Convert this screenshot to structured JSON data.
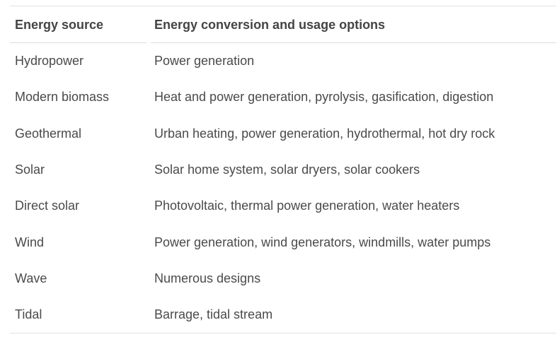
{
  "table": {
    "headers": [
      "Energy source",
      "Energy conversion and usage options"
    ],
    "rows": [
      [
        "Hydropower",
        "Power generation"
      ],
      [
        "Modern biomass",
        "Heat and power generation, pyrolysis, gasification, digestion"
      ],
      [
        "Geothermal",
        "Urban heating, power generation, hydrothermal, hot dry rock"
      ],
      [
        "Solar",
        "Solar home system, solar dryers, solar cookers"
      ],
      [
        "Direct solar",
        "Photovoltaic, thermal power generation, water heaters"
      ],
      [
        "Wind",
        "Power generation, wind generators, windmills, water pumps"
      ],
      [
        "Wave",
        "Numerous designs"
      ],
      [
        "Tidal",
        "Barrage, tidal stream"
      ]
    ]
  }
}
